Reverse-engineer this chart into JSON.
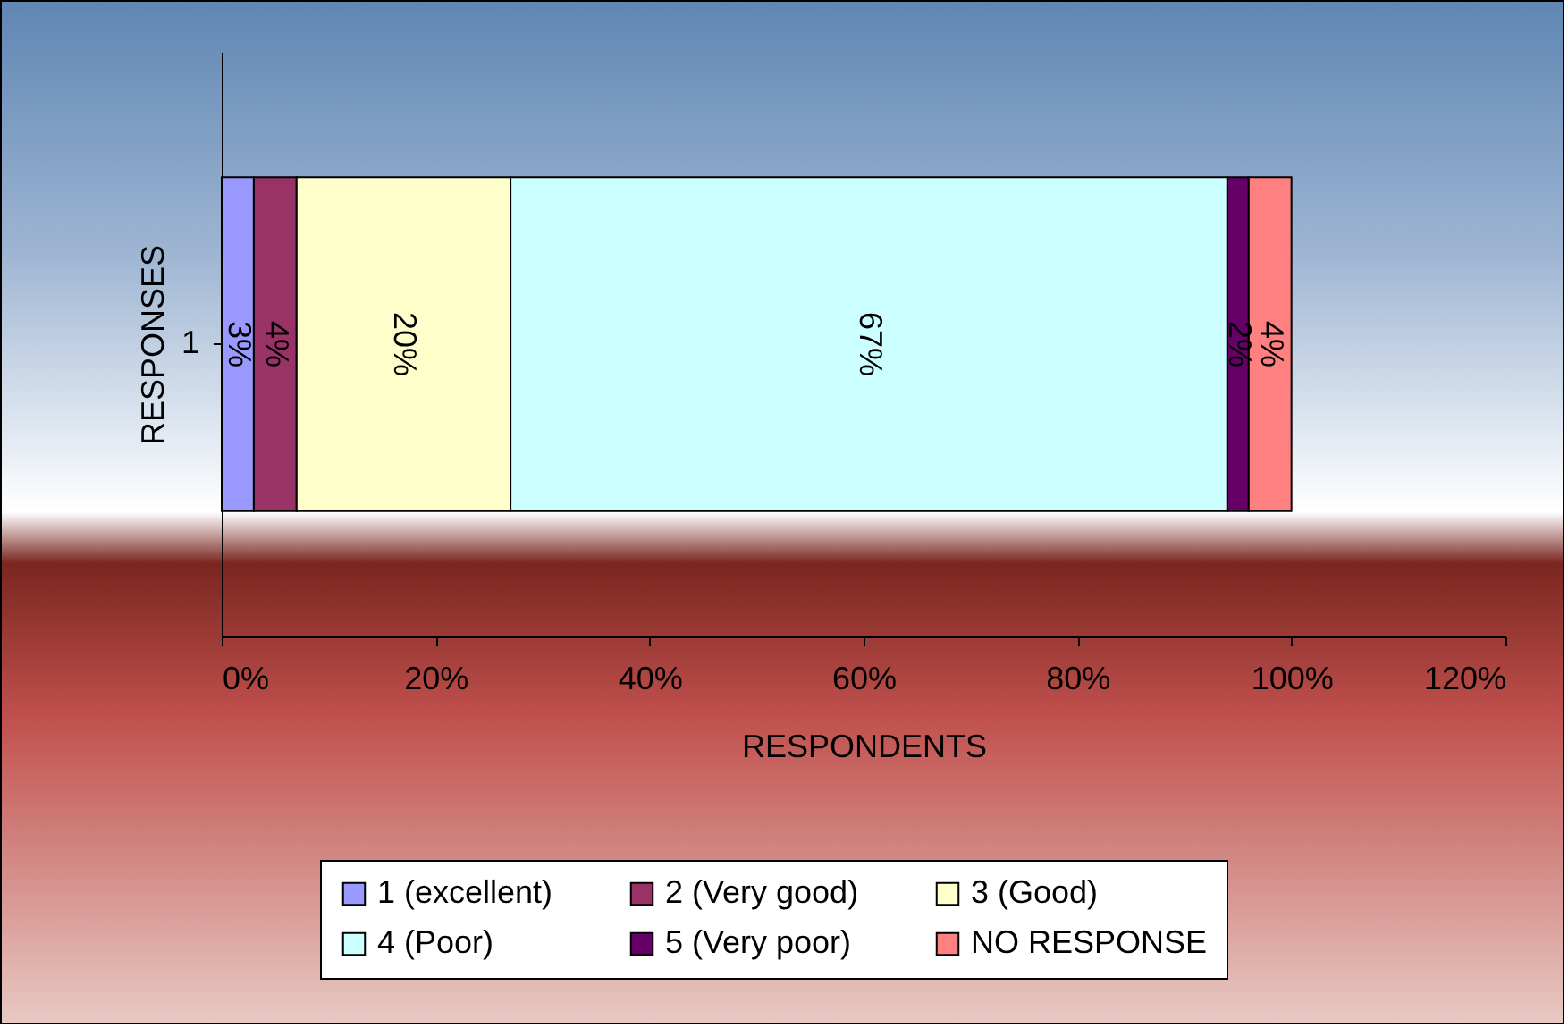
{
  "chart_data": {
    "type": "bar",
    "orientation": "horizontal",
    "stacked": true,
    "categories": [
      "1"
    ],
    "xlabel": "RESPONDENTS",
    "ylabel": "RESPONSES",
    "xlim": [
      0,
      120
    ],
    "xticks": [
      {
        "value": 0,
        "label": "0%"
      },
      {
        "value": 20,
        "label": "20%"
      },
      {
        "value": 40,
        "label": "40%"
      },
      {
        "value": 60,
        "label": "60%"
      },
      {
        "value": 80,
        "label": "80%"
      },
      {
        "value": 100,
        "label": "100%"
      },
      {
        "value": 120,
        "label": "120%"
      }
    ],
    "grid": false,
    "legend": "bottom",
    "series": [
      {
        "name": "1 (excellent)",
        "color": "#9999ff",
        "values": [
          3
        ],
        "value_labels": [
          "3%"
        ]
      },
      {
        "name": "2 (Very good)",
        "color": "#993366",
        "values": [
          4
        ],
        "value_labels": [
          "4%"
        ]
      },
      {
        "name": "3 (Good)",
        "color": "#ffffcc",
        "values": [
          20
        ],
        "value_labels": [
          "20%"
        ]
      },
      {
        "name": "4 (Poor)",
        "color": "#ccffff",
        "values": [
          67
        ],
        "value_labels": [
          "67%"
        ]
      },
      {
        "name": "5 (Very poor)",
        "color": "#660066",
        "values": [
          2
        ],
        "value_labels": [
          "2%"
        ]
      },
      {
        "name": "NO RESPONSE",
        "color": "#ff8080",
        "values": [
          4
        ],
        "value_labels": [
          "4%"
        ]
      }
    ]
  }
}
